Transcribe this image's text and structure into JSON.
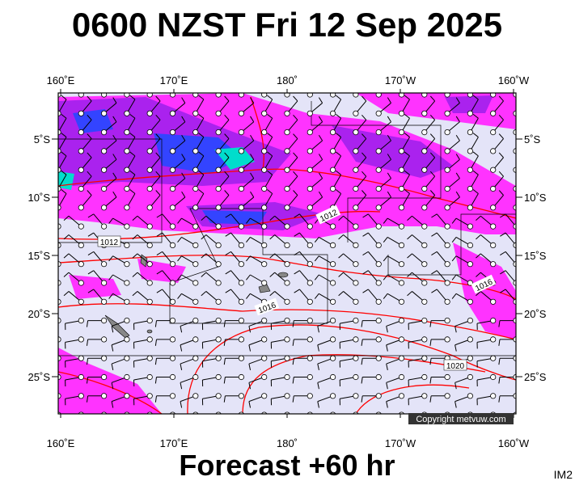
{
  "title": "0600 NZST Fri 12 Sep 2025",
  "map": {
    "lon_labels": [
      "160˚E",
      "170˚E",
      "180˚",
      "170˚W",
      "160˚W"
    ],
    "lat_labels": [
      "5˚S",
      "10˚S",
      "15˚S",
      "20˚S",
      "25˚S"
    ],
    "isobar_labels": [
      "1012",
      "1012",
      "1016",
      "1016",
      "1020"
    ],
    "copyright": "Copyright metvuw.com"
  },
  "footer": {
    "forecast": "Forecast +60 hr",
    "id": "IM2"
  }
}
